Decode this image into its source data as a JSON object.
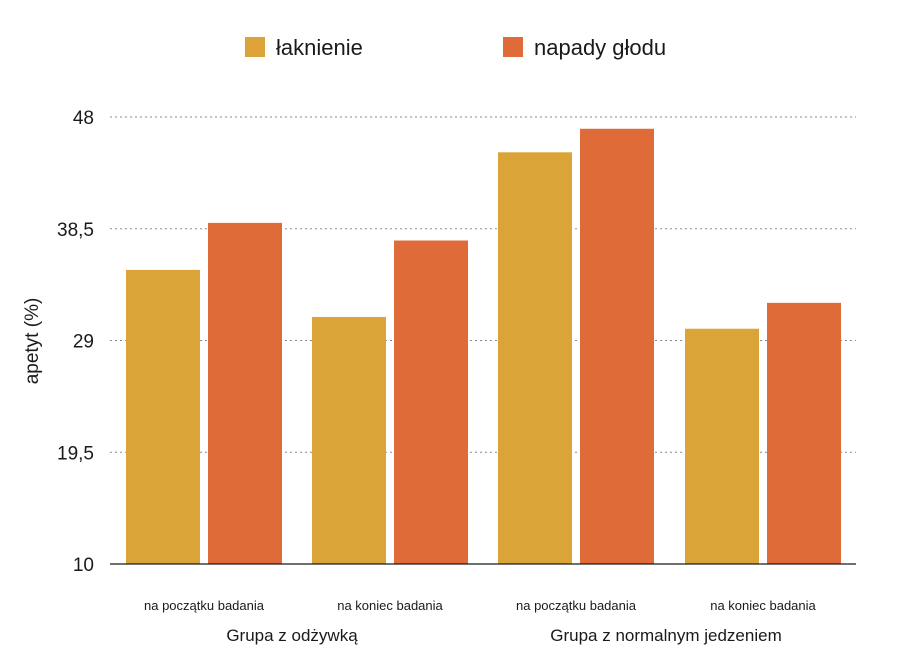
{
  "chart_data": {
    "type": "bar",
    "ylabel": "apetyt (%)",
    "ylim": [
      10,
      48
    ],
    "yticks": [
      10,
      19.5,
      29,
      38.5,
      48
    ],
    "ytick_labels": [
      "10",
      "19,5",
      "29",
      "38,5",
      "48"
    ],
    "grid": true,
    "legend_position": "top",
    "groups": [
      {
        "label": "Grupa z odżywką",
        "categories": [
          "na początku badania",
          "na koniec badania"
        ]
      },
      {
        "label": "Grupa z normalnym jedzeniem",
        "categories": [
          "na początku badania",
          "na koniec badania"
        ]
      }
    ],
    "categories": [
      "na początku badania",
      "na koniec badania",
      "na początku badania",
      "na koniec badania"
    ],
    "series": [
      {
        "name": "łaknienie",
        "color": "#DBA439",
        "values": [
          35,
          31,
          45,
          30
        ]
      },
      {
        "name": "napady głodu",
        "color": "#DF6C38",
        "values": [
          39,
          37.5,
          47,
          32.2
        ]
      }
    ]
  }
}
